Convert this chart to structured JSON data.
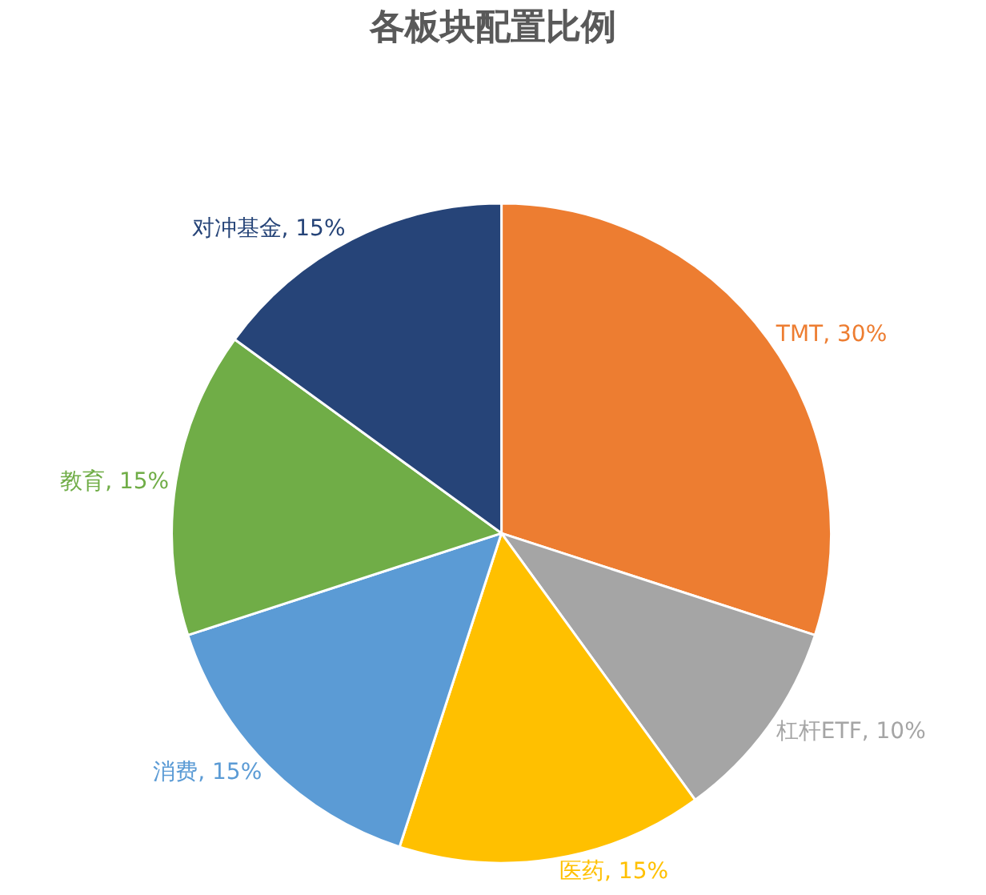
{
  "chart_data": {
    "type": "pie",
    "title": "各板块配置比例",
    "categories": [
      "TMT",
      "杠杆ETF",
      "医药",
      "消费",
      "教育",
      "对冲基金"
    ],
    "values": [
      30,
      10,
      15,
      15,
      15,
      15
    ],
    "value_labels": [
      "30%",
      "10%",
      "15%",
      "15%",
      "15%",
      "15%"
    ],
    "colors": [
      "#ed7d31",
      "#a5a5a5",
      "#ffc000",
      "#5b9bd5",
      "#70ad47",
      "#264478"
    ],
    "legend": false
  }
}
